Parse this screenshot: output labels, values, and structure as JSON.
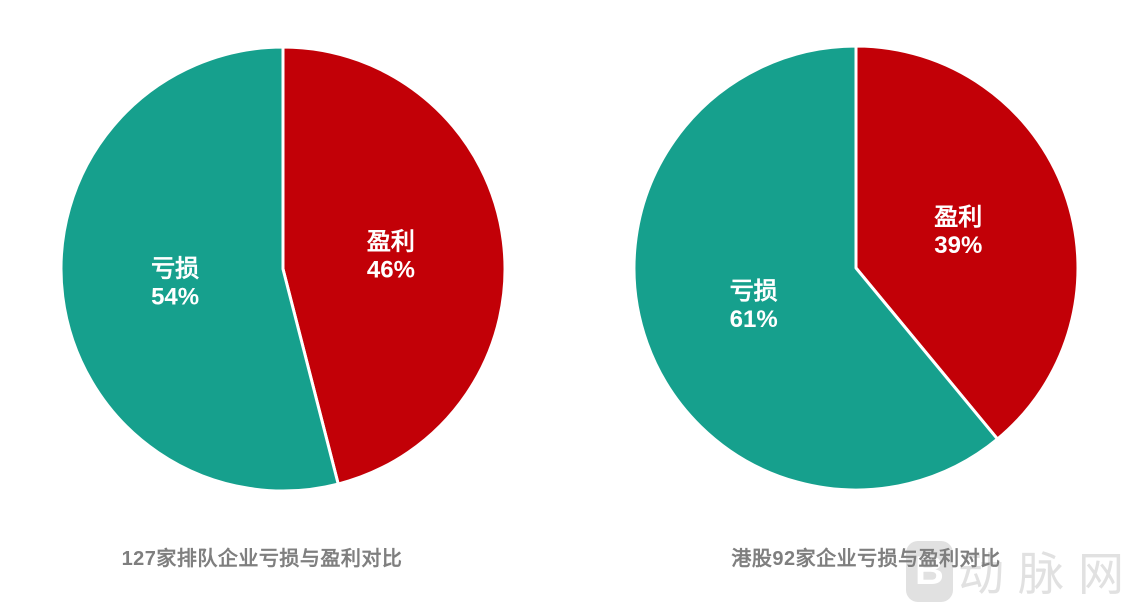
{
  "page": {
    "background": "#ffffff"
  },
  "styles": {
    "slice_border_color": "#ffffff",
    "slice_label_color": "#ffffff",
    "caption_color": "#7f7f7f",
    "profit_color": "#c20007",
    "loss_color": "#16a08d"
  },
  "chart_data": [
    {
      "type": "pie",
      "title": "127家排队企业亏损与盈利对比",
      "start_angle_deg": 0,
      "direction": "clockwise",
      "label_format": "{label} {value}%",
      "slices": [
        {
          "label": "盈利",
          "value": 46,
          "color": "#c20007"
        },
        {
          "label": "亏损",
          "value": 54,
          "color": "#16a08d"
        }
      ]
    },
    {
      "type": "pie",
      "title": "港股92家企业亏损与盈利对比",
      "start_angle_deg": 0,
      "direction": "clockwise",
      "label_format": "{label} {value}%",
      "slices": [
        {
          "label": "盈利",
          "value": 39,
          "color": "#c20007"
        },
        {
          "label": "亏损",
          "value": 61,
          "color": "#16a08d"
        }
      ]
    }
  ],
  "watermark": {
    "logo_letter": "B",
    "brand_text": "动脉网",
    "color": "#e1e1e1"
  }
}
